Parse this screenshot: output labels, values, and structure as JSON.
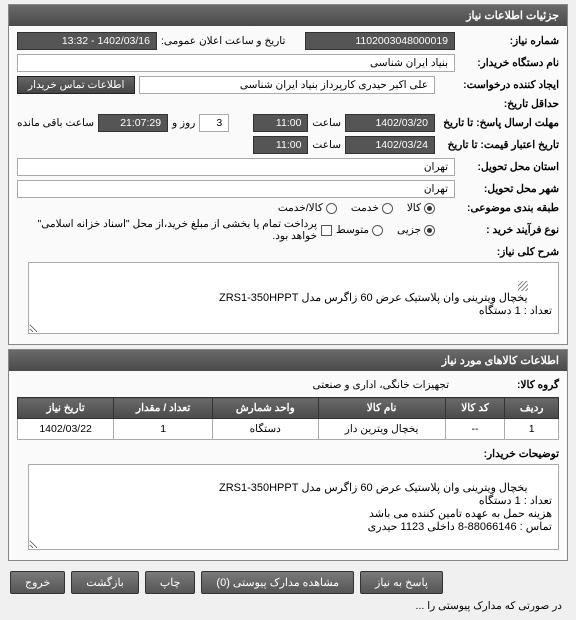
{
  "headers": {
    "details": "جزئیات اطلاعات نیاز",
    "items": "اطلاعات کالاهای مورد نیاز"
  },
  "labels": {
    "need_no": "شماره نیاز:",
    "pub_datetime": "تاریخ و ساعت اعلان عمومی:",
    "buyer_org": "نام دستگاه خریدار:",
    "creator": "ایجاد کننده درخواست:",
    "contact_btn": "اطلاعات تماس خریدار",
    "deadline": "حداقل تاریخ:",
    "reply_deadline": "مهلت ارسال پاسخ: تا تاریخ",
    "hour": "ساعت",
    "day_and": "روز و",
    "remaining": "ساعت باقی مانده",
    "validity": "تاریخ اعتبار قیمت: تا تاریخ",
    "req_city": "استان محل تحویل:",
    "del_city": "شهر محل تحویل:",
    "category": "طبقه بندی موضوعی:",
    "buy_process": "نوع فرآیند خرید :",
    "payment_note": "پرداخت تمام یا بخشی از مبلغ خرید،از محل \"اسناد خزانه اسلامی\" خواهد بود.",
    "need_desc": "شرح کلی نیاز:",
    "item_group": "گروه کالا:",
    "buyer_notes": "توضیحات خریدار:",
    "view_attach_btn": "مشاهده مدارک پیوستی (0)",
    "respond_btn": "پاسخ به نیاز",
    "print_btn": "چاپ",
    "back_btn": "بازگشت",
    "exit_btn": "خروج",
    "bottom_note": "در صورتی که مدارک پیوستی را ..."
  },
  "values": {
    "need_no": "1102003048000019",
    "pub_date": "1402/03/16 - 13:32",
    "buyer_org": "بنیاد ایران شناسی",
    "creator": "علی اکبر حیدری کارپرداز بنیاد ایران شناسی",
    "reply_date": "1402/03/20",
    "reply_hour": "11:00",
    "days": "3",
    "remain_clock": "21:07:29",
    "validity_date": "1402/03/24",
    "validity_hour": "11:00",
    "req_city": "تهران",
    "del_city": "تهران",
    "need_desc": "یخچال ویترینی وان پلاستیک عرض 60 زاگرس مدل ZRS1-350HPPT\nتعداد : 1 دستگاه",
    "item_group": "تجهیزات خانگی، اداری و صنعتی",
    "buyer_notes": "یخچال ویترینی وان پلاستیک عرض 60 زاگرس مدل ZRS1-350HPPT\nتعداد : 1 دستگاه\nهزینه حمل به عهده تامین کننده می باشد\nتماس : 88066146-8 داخلی 1123 حیدری"
  },
  "radios": {
    "cat": {
      "options": [
        "کالا",
        "خدمت",
        "کالا/خدمت"
      ],
      "selected": 0
    },
    "proc": {
      "options": [
        "جزیی",
        "متوسط"
      ],
      "selected": 0
    }
  },
  "table": {
    "cols": [
      "ردیف",
      "کد کالا",
      "نام کالا",
      "واحد شمارش",
      "تعداد / مقدار",
      "تاریخ نیاز"
    ],
    "rows": [
      [
        "1",
        "--",
        "یخچال ویترین دار",
        "دستگاه",
        "1",
        "1402/03/22"
      ]
    ]
  },
  "colors": {
    "header_bg": "#555555",
    "field_dark": "#555555"
  }
}
